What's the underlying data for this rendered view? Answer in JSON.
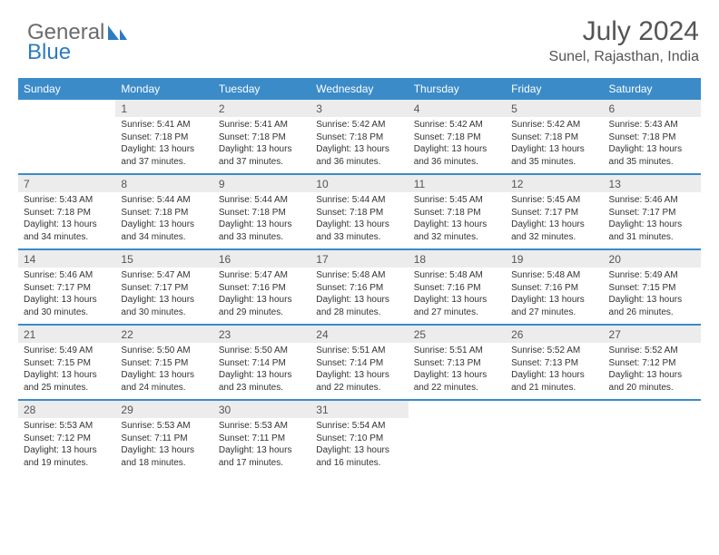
{
  "brand": {
    "part1": "General",
    "part2": "Blue"
  },
  "title": "July 2024",
  "location": "Sunel, Rajasthan, India",
  "colors": {
    "header_bg": "#3b8bc9",
    "header_text": "#ffffff",
    "daynum_bg": "#ececec",
    "text": "#333333",
    "title_text": "#555555",
    "logo_gray": "#6b6b6b",
    "logo_blue": "#2f7bbf",
    "page_bg": "#ffffff"
  },
  "dow": [
    "Sunday",
    "Monday",
    "Tuesday",
    "Wednesday",
    "Thursday",
    "Friday",
    "Saturday"
  ],
  "weeks": [
    [
      null,
      {
        "n": "1",
        "sr": "Sunrise: 5:41 AM",
        "ss": "Sunset: 7:18 PM",
        "d1": "Daylight: 13 hours",
        "d2": "and 37 minutes."
      },
      {
        "n": "2",
        "sr": "Sunrise: 5:41 AM",
        "ss": "Sunset: 7:18 PM",
        "d1": "Daylight: 13 hours",
        "d2": "and 37 minutes."
      },
      {
        "n": "3",
        "sr": "Sunrise: 5:42 AM",
        "ss": "Sunset: 7:18 PM",
        "d1": "Daylight: 13 hours",
        "d2": "and 36 minutes."
      },
      {
        "n": "4",
        "sr": "Sunrise: 5:42 AM",
        "ss": "Sunset: 7:18 PM",
        "d1": "Daylight: 13 hours",
        "d2": "and 36 minutes."
      },
      {
        "n": "5",
        "sr": "Sunrise: 5:42 AM",
        "ss": "Sunset: 7:18 PM",
        "d1": "Daylight: 13 hours",
        "d2": "and 35 minutes."
      },
      {
        "n": "6",
        "sr": "Sunrise: 5:43 AM",
        "ss": "Sunset: 7:18 PM",
        "d1": "Daylight: 13 hours",
        "d2": "and 35 minutes."
      }
    ],
    [
      {
        "n": "7",
        "sr": "Sunrise: 5:43 AM",
        "ss": "Sunset: 7:18 PM",
        "d1": "Daylight: 13 hours",
        "d2": "and 34 minutes."
      },
      {
        "n": "8",
        "sr": "Sunrise: 5:44 AM",
        "ss": "Sunset: 7:18 PM",
        "d1": "Daylight: 13 hours",
        "d2": "and 34 minutes."
      },
      {
        "n": "9",
        "sr": "Sunrise: 5:44 AM",
        "ss": "Sunset: 7:18 PM",
        "d1": "Daylight: 13 hours",
        "d2": "and 33 minutes."
      },
      {
        "n": "10",
        "sr": "Sunrise: 5:44 AM",
        "ss": "Sunset: 7:18 PM",
        "d1": "Daylight: 13 hours",
        "d2": "and 33 minutes."
      },
      {
        "n": "11",
        "sr": "Sunrise: 5:45 AM",
        "ss": "Sunset: 7:18 PM",
        "d1": "Daylight: 13 hours",
        "d2": "and 32 minutes."
      },
      {
        "n": "12",
        "sr": "Sunrise: 5:45 AM",
        "ss": "Sunset: 7:17 PM",
        "d1": "Daylight: 13 hours",
        "d2": "and 32 minutes."
      },
      {
        "n": "13",
        "sr": "Sunrise: 5:46 AM",
        "ss": "Sunset: 7:17 PM",
        "d1": "Daylight: 13 hours",
        "d2": "and 31 minutes."
      }
    ],
    [
      {
        "n": "14",
        "sr": "Sunrise: 5:46 AM",
        "ss": "Sunset: 7:17 PM",
        "d1": "Daylight: 13 hours",
        "d2": "and 30 minutes."
      },
      {
        "n": "15",
        "sr": "Sunrise: 5:47 AM",
        "ss": "Sunset: 7:17 PM",
        "d1": "Daylight: 13 hours",
        "d2": "and 30 minutes."
      },
      {
        "n": "16",
        "sr": "Sunrise: 5:47 AM",
        "ss": "Sunset: 7:16 PM",
        "d1": "Daylight: 13 hours",
        "d2": "and 29 minutes."
      },
      {
        "n": "17",
        "sr": "Sunrise: 5:48 AM",
        "ss": "Sunset: 7:16 PM",
        "d1": "Daylight: 13 hours",
        "d2": "and 28 minutes."
      },
      {
        "n": "18",
        "sr": "Sunrise: 5:48 AM",
        "ss": "Sunset: 7:16 PM",
        "d1": "Daylight: 13 hours",
        "d2": "and 27 minutes."
      },
      {
        "n": "19",
        "sr": "Sunrise: 5:48 AM",
        "ss": "Sunset: 7:16 PM",
        "d1": "Daylight: 13 hours",
        "d2": "and 27 minutes."
      },
      {
        "n": "20",
        "sr": "Sunrise: 5:49 AM",
        "ss": "Sunset: 7:15 PM",
        "d1": "Daylight: 13 hours",
        "d2": "and 26 minutes."
      }
    ],
    [
      {
        "n": "21",
        "sr": "Sunrise: 5:49 AM",
        "ss": "Sunset: 7:15 PM",
        "d1": "Daylight: 13 hours",
        "d2": "and 25 minutes."
      },
      {
        "n": "22",
        "sr": "Sunrise: 5:50 AM",
        "ss": "Sunset: 7:15 PM",
        "d1": "Daylight: 13 hours",
        "d2": "and 24 minutes."
      },
      {
        "n": "23",
        "sr": "Sunrise: 5:50 AM",
        "ss": "Sunset: 7:14 PM",
        "d1": "Daylight: 13 hours",
        "d2": "and 23 minutes."
      },
      {
        "n": "24",
        "sr": "Sunrise: 5:51 AM",
        "ss": "Sunset: 7:14 PM",
        "d1": "Daylight: 13 hours",
        "d2": "and 22 minutes."
      },
      {
        "n": "25",
        "sr": "Sunrise: 5:51 AM",
        "ss": "Sunset: 7:13 PM",
        "d1": "Daylight: 13 hours",
        "d2": "and 22 minutes."
      },
      {
        "n": "26",
        "sr": "Sunrise: 5:52 AM",
        "ss": "Sunset: 7:13 PM",
        "d1": "Daylight: 13 hours",
        "d2": "and 21 minutes."
      },
      {
        "n": "27",
        "sr": "Sunrise: 5:52 AM",
        "ss": "Sunset: 7:12 PM",
        "d1": "Daylight: 13 hours",
        "d2": "and 20 minutes."
      }
    ],
    [
      {
        "n": "28",
        "sr": "Sunrise: 5:53 AM",
        "ss": "Sunset: 7:12 PM",
        "d1": "Daylight: 13 hours",
        "d2": "and 19 minutes."
      },
      {
        "n": "29",
        "sr": "Sunrise: 5:53 AM",
        "ss": "Sunset: 7:11 PM",
        "d1": "Daylight: 13 hours",
        "d2": "and 18 minutes."
      },
      {
        "n": "30",
        "sr": "Sunrise: 5:53 AM",
        "ss": "Sunset: 7:11 PM",
        "d1": "Daylight: 13 hours",
        "d2": "and 17 minutes."
      },
      {
        "n": "31",
        "sr": "Sunrise: 5:54 AM",
        "ss": "Sunset: 7:10 PM",
        "d1": "Daylight: 13 hours",
        "d2": "and 16 minutes."
      },
      null,
      null,
      null
    ]
  ]
}
